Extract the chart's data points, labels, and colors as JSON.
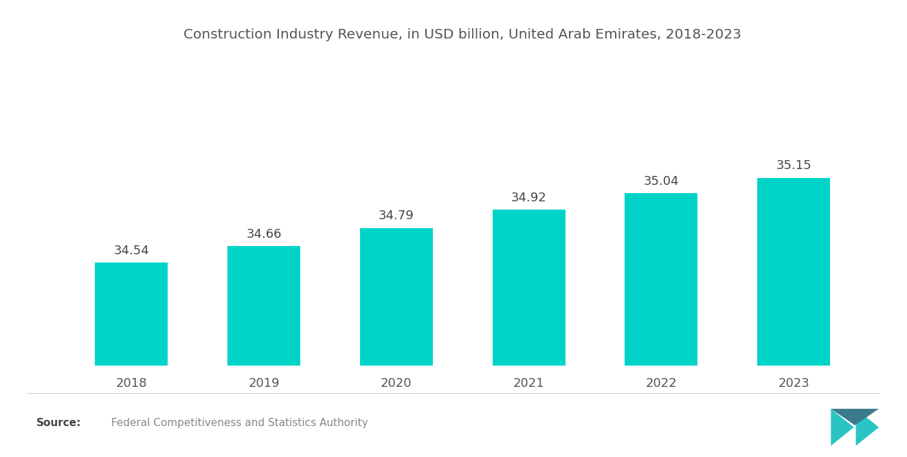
{
  "title": "Construction Industry Revenue, in USD billion, United Arab Emirates, 2018-2023",
  "categories": [
    "2018",
    "2019",
    "2020",
    "2021",
    "2022",
    "2023"
  ],
  "values": [
    34.54,
    34.66,
    34.79,
    34.92,
    35.04,
    35.15
  ],
  "bar_color": "#00D4C8",
  "title_color": "#555555",
  "label_color": "#444444",
  "tick_color": "#555555",
  "background_color": "#ffffff",
  "source_bold": "Source:",
  "source_text": "  Federal Competitiveness and Statistics Authority",
  "source_color": "#888888",
  "ylim_min": 33.8,
  "ylim_max": 36.0,
  "bar_width": 0.55,
  "value_fontsize": 13,
  "tick_fontsize": 13,
  "title_fontsize": 14.5
}
